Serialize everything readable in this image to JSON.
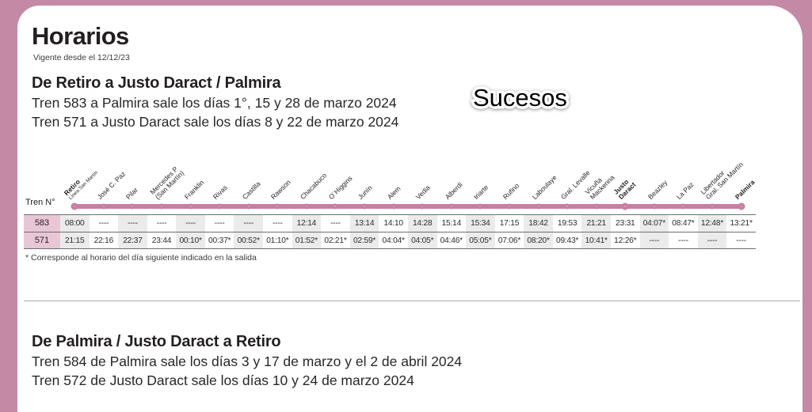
{
  "page": {
    "title": "Horarios",
    "subtitle": "Vigente desde el 12/12/23",
    "watermark": "Sucesos"
  },
  "section_outbound": {
    "heading": "De Retiro a Justo Daract / Palmira",
    "lines": [
      "Tren 583 a Palmira sale los días 1°, 15 y 28 de marzo 2024",
      "Tren 571 a Justo Daract sale los días 8 y 22 de marzo 2024"
    ]
  },
  "timetable": {
    "row_label_header": "Tren N°",
    "stations": [
      {
        "name": "Retiro",
        "sub": "Línea San Martín",
        "major": true
      },
      {
        "name": "José C. Paz"
      },
      {
        "name": "Pilar"
      },
      {
        "name": "Mercedes P\n(San Martín)"
      },
      {
        "name": "Franklin"
      },
      {
        "name": "Rivas"
      },
      {
        "name": "Castilla"
      },
      {
        "name": "Rawson"
      },
      {
        "name": "Chacabuco"
      },
      {
        "name": "O´Higgins"
      },
      {
        "name": "Junín"
      },
      {
        "name": "Alem"
      },
      {
        "name": "Vedia"
      },
      {
        "name": "Alberdi"
      },
      {
        "name": "Iriarte"
      },
      {
        "name": "Rufino"
      },
      {
        "name": "Laboulaye"
      },
      {
        "name": "Gral. Levalle"
      },
      {
        "name": "Vicuña\nMackenna"
      },
      {
        "name": "Justo\nDaract",
        "major": true
      },
      {
        "name": "Beazley"
      },
      {
        "name": "La Paz"
      },
      {
        "name": "Libertador\nGral. San Martín"
      },
      {
        "name": "Palmira",
        "major": true
      }
    ],
    "trains": [
      {
        "number": "583",
        "times": [
          "08:00",
          "----",
          "----",
          "----",
          "----",
          "----",
          "----",
          "----",
          "12:14",
          "----",
          "13:14",
          "14:10",
          "14:28",
          "15:14",
          "15:34",
          "17:15",
          "18:42",
          "19:53",
          "21:21",
          "23:31",
          "04:07*",
          "08:47*",
          "12:48*",
          "13:21*"
        ]
      },
      {
        "number": "571",
        "times": [
          "21:15",
          "22:16",
          "22:37",
          "23:44",
          "00:10*",
          "00:37*",
          "00:52*",
          "01:10*",
          "01:52*",
          "02:21*",
          "02:59*",
          "04:04*",
          "04:05*",
          "04:46*",
          "05:05*",
          "07:06*",
          "08:20*",
          "09:43*",
          "10:41*",
          "12:26*",
          "----",
          "----",
          "----",
          "----"
        ]
      }
    ],
    "footnote": "* Corresponde al horario del día siguiente indicado en la salida"
  },
  "section_return": {
    "heading": "De Palmira / Justo Daract a Retiro",
    "lines": [
      "Tren 584 de Palmira sale los días 3 y 17 de marzo y el 2 de abril 2024",
      "Tren 572 de Justo Daract sale los días 10 y 24 de marzo 2024"
    ]
  },
  "colors": {
    "frame_pink": "#c48aa5",
    "line_pink": "#c77fa2",
    "label_pink": "#e9c6d6",
    "stripe": "#ebebeb"
  }
}
